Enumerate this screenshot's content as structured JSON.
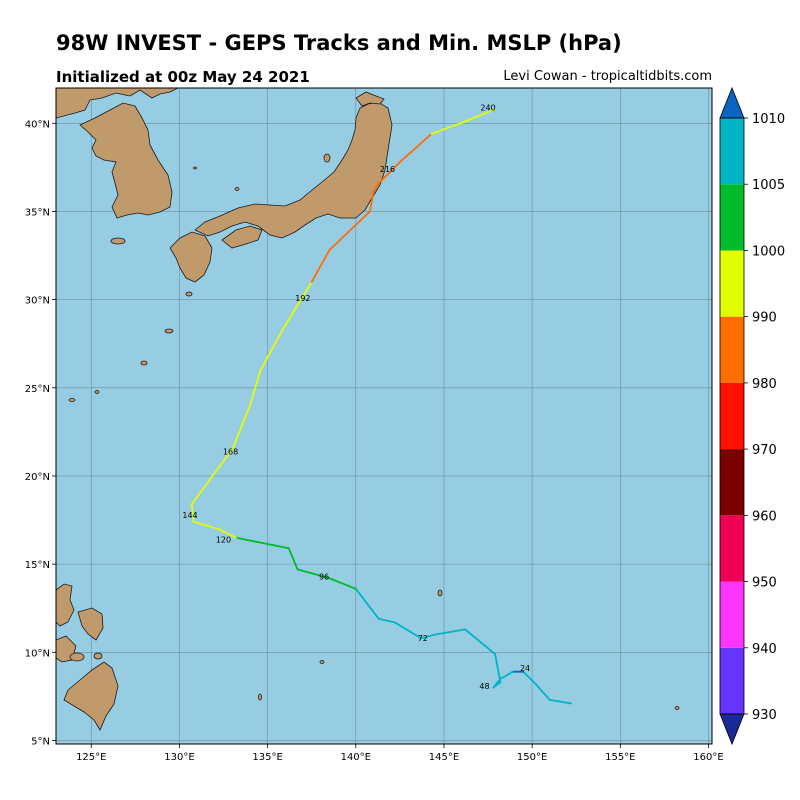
{
  "title": "98W INVEST - GEPS Tracks and Min. MSLP (hPa)",
  "subtitle": "Initialized at 00z May 24 2021",
  "credit": "Levi Cowan - tropicaltidbits.com",
  "map": {
    "lon_range": [
      123,
      160.2
    ],
    "lat_range": [
      4.8,
      42
    ],
    "lon_ticks": [
      125,
      130,
      135,
      140,
      145,
      150,
      155,
      160
    ],
    "lon_labels": [
      "125°E",
      "130°E",
      "135°E",
      "140°E",
      "145°E",
      "150°E",
      "155°E",
      "160°E"
    ],
    "lat_ticks": [
      5,
      10,
      15,
      20,
      25,
      30,
      35,
      40
    ],
    "lat_labels": [
      "5°N",
      "10°N",
      "15°N",
      "20°N",
      "25°N",
      "30°N",
      "35°N",
      "40°N"
    ],
    "colors": {
      "ocean": "#96cde3",
      "land": "#c09a6b",
      "grid": "#6f8d99",
      "coast": "#1a1a1a"
    }
  },
  "track": {
    "points": [
      {
        "lon": 152.2,
        "lat": 7.1,
        "p": 1006
      },
      {
        "lon": 151.0,
        "lat": 7.3,
        "p": 1006
      },
      {
        "lon": 150.2,
        "lat": 8.2,
        "p": 1006
      },
      {
        "lon": 149.5,
        "lat": 8.9,
        "p": 1010
      },
      {
        "lon": 148.9,
        "lat": 8.9,
        "p": 1006
      },
      {
        "lon": 148.4,
        "lat": 8.6,
        "p": 1006
      },
      {
        "lon": 148.2,
        "lat": 8.5,
        "p": 1006
      },
      {
        "lon": 147.8,
        "lat": 8.0,
        "p": 1006
      },
      {
        "lon": 148.2,
        "lat": 8.3,
        "p": 1006
      },
      {
        "lon": 147.9,
        "lat": 9.9,
        "p": 1006
      },
      {
        "lon": 146.2,
        "lat": 11.3,
        "p": 1006
      },
      {
        "lon": 144.5,
        "lat": 11.0,
        "p": 1006
      },
      {
        "lon": 143.7,
        "lat": 10.8,
        "p": 1006
      },
      {
        "lon": 142.2,
        "lat": 11.7,
        "p": 1006
      },
      {
        "lon": 141.3,
        "lat": 11.9,
        "p": 1006
      },
      {
        "lon": 140.0,
        "lat": 13.6,
        "p": 1001
      },
      {
        "lon": 138.5,
        "lat": 14.2,
        "p": 1001
      },
      {
        "lon": 136.7,
        "lat": 14.7,
        "p": 1001
      },
      {
        "lon": 136.2,
        "lat": 15.9,
        "p": 1001
      },
      {
        "lon": 134.2,
        "lat": 16.3,
        "p": 1001
      },
      {
        "lon": 133.2,
        "lat": 16.5,
        "p": 995
      },
      {
        "lon": 132.2,
        "lat": 17.0,
        "p": 995
      },
      {
        "lon": 130.8,
        "lat": 17.4,
        "p": 995
      },
      {
        "lon": 130.7,
        "lat": 18.4,
        "p": 995
      },
      {
        "lon": 131.8,
        "lat": 19.9,
        "p": 995
      },
      {
        "lon": 133.0,
        "lat": 21.5,
        "p": 995
      },
      {
        "lon": 134.0,
        "lat": 24.0,
        "p": 995
      },
      {
        "lon": 134.6,
        "lat": 26.0,
        "p": 995
      },
      {
        "lon": 135.8,
        "lat": 28.2,
        "p": 995
      },
      {
        "lon": 137.5,
        "lat": 31.0,
        "p": 985
      },
      {
        "lon": 138.5,
        "lat": 32.8,
        "p": 985
      },
      {
        "lon": 140.8,
        "lat": 35.0,
        "p": 985
      },
      {
        "lon": 141.0,
        "lat": 36.1,
        "p": 985
      },
      {
        "lon": 141.3,
        "lat": 36.6,
        "p": 985
      },
      {
        "lon": 142.5,
        "lat": 37.8,
        "p": 985
      },
      {
        "lon": 144.3,
        "lat": 39.4,
        "p": 995
      },
      {
        "lon": 146.2,
        "lat": 40.1,
        "p": 995
      },
      {
        "lon": 147.9,
        "lat": 40.8,
        "p": 995
      }
    ],
    "hour_labels": [
      {
        "text": "24",
        "lon": 149.6,
        "lat": 9.1
      },
      {
        "text": "48",
        "lon": 147.3,
        "lat": 8.1
      },
      {
        "text": "72",
        "lon": 143.8,
        "lat": 10.8
      },
      {
        "text": "96",
        "lon": 138.2,
        "lat": 14.3
      },
      {
        "text": "120",
        "lon": 132.5,
        "lat": 16.4
      },
      {
        "text": "144",
        "lon": 130.6,
        "lat": 17.8
      },
      {
        "text": "168",
        "lon": 132.9,
        "lat": 21.4
      },
      {
        "text": "192",
        "lon": 137.0,
        "lat": 30.1
      },
      {
        "text": "216",
        "lon": 141.8,
        "lat": 37.4
      },
      {
        "text": "240",
        "lon": 147.5,
        "lat": 40.9
      }
    ]
  },
  "colorbar": {
    "labels": [
      "930",
      "940",
      "950",
      "960",
      "970",
      "980",
      "990",
      "1000",
      "1005",
      "1010"
    ],
    "colors": [
      "#6633ff",
      "#ff33ff",
      "#ee0055",
      "#7a0000",
      "#ff1100",
      "#ff6e00",
      "#e1ff00",
      "#00bb2b",
      "#00b4c3"
    ],
    "extend_low_color": "#1a2a99",
    "extend_high_color": "#0b64c4"
  }
}
